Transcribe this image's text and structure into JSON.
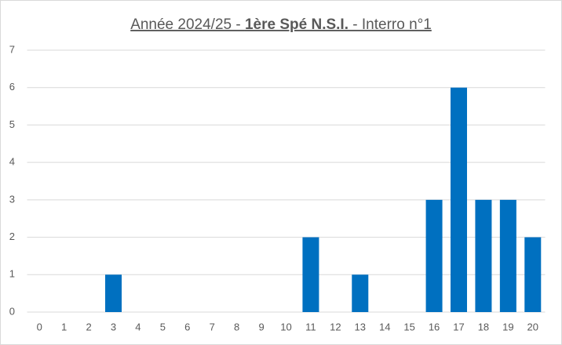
{
  "chart_data": {
    "type": "bar",
    "title_parts": [
      {
        "text": "Année 2024/25 - ",
        "bold": false
      },
      {
        "text": "1ère Spé N.S.I.",
        "bold": true
      },
      {
        "text": " - Interro n°1",
        "bold": false
      }
    ],
    "categories": [
      "0",
      "1",
      "2",
      "3",
      "4",
      "5",
      "6",
      "7",
      "8",
      "9",
      "10",
      "11",
      "12",
      "13",
      "14",
      "15",
      "16",
      "17",
      "18",
      "19",
      "20"
    ],
    "values": [
      0,
      0,
      0,
      1,
      0,
      0,
      0,
      0,
      0,
      0,
      0,
      2,
      0,
      1,
      0,
      0,
      3,
      6,
      3,
      3,
      2
    ],
    "color": "#0070c0",
    "ylim": [
      0,
      7
    ],
    "yticks": [
      0,
      1,
      2,
      3,
      4,
      5,
      6,
      7
    ],
    "grid": true
  }
}
